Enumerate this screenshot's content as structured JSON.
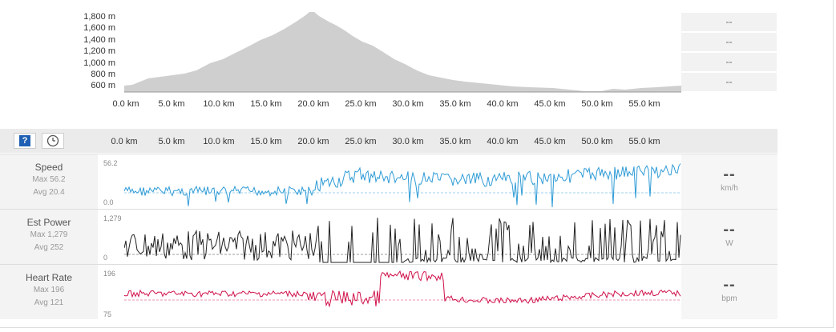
{
  "elevation": {
    "y_ticks": [
      "1,800 m",
      "1,600 m",
      "1,400 m",
      "1,200 m",
      "1,000 m",
      "800 m",
      "600 m"
    ],
    "x_ticks": [
      "0.0 km",
      "5.0 km",
      "10.0 km",
      "15.0 km",
      "20.0 km",
      "25.0 km",
      "30.0 km",
      "35.0 km",
      "40.0 km",
      "45.0 km",
      "50.0 km",
      "55.0 km"
    ],
    "fill_color": "#cfcfcf",
    "stats": [
      "--",
      "--",
      "--",
      "--"
    ]
  },
  "toolbar": {
    "help_icon": "question-icon",
    "clock_icon": "clock-icon",
    "x_ticks": [
      "0.0 km",
      "5.0 km",
      "10.0 km",
      "15.0 km",
      "20.0 km",
      "25.0 km",
      "30.0 km",
      "35.0 km",
      "40.0 km",
      "45.0 km",
      "50.0 km",
      "55.0 km"
    ]
  },
  "rows": [
    {
      "title": "Speed",
      "max": "Max 56.2",
      "avg": "Avg 20.4",
      "ymax": "56.2",
      "ymin": "0.0",
      "value": "--",
      "unit": "km/h",
      "color": "#2e9bd6"
    },
    {
      "title": "Est Power",
      "max": "Max 1,279",
      "avg": "Avg 252",
      "ymax": "1,279",
      "ymin": "0",
      "value": "--",
      "unit": "W",
      "color": "#222222"
    },
    {
      "title": "Heart Rate",
      "max": "Max 196",
      "avg": "Avg 121",
      "ymax": "196",
      "ymin": "75",
      "value": "--",
      "unit": "bpm",
      "color": "#d0104a"
    }
  ]
}
